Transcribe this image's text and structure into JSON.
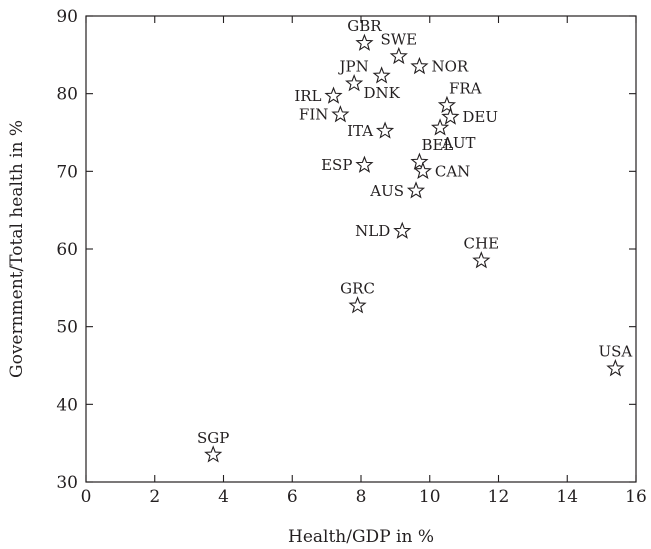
{
  "chart_data": {
    "type": "scatter",
    "title": "",
    "xlabel": "Health/GDP in %",
    "ylabel": "Government/Total health in %",
    "xlim": [
      0,
      16
    ],
    "ylim": [
      30,
      90
    ],
    "xticks": [
      0,
      2,
      4,
      6,
      8,
      10,
      12,
      14,
      16
    ],
    "yticks": [
      30,
      40,
      50,
      60,
      70,
      80,
      90
    ],
    "grid": false,
    "marker": "star",
    "points": [
      {
        "label": "GBR",
        "x": 8.1,
        "y": 86.5,
        "label_pos": "above"
      },
      {
        "label": "SWE",
        "x": 9.1,
        "y": 84.8,
        "label_pos": "above"
      },
      {
        "label": "NOR",
        "x": 9.7,
        "y": 83.5,
        "label_pos": "right"
      },
      {
        "label": "JPN",
        "x": 7.8,
        "y": 81.3,
        "label_pos": "above"
      },
      {
        "label": "DNK",
        "x": 8.6,
        "y": 82.3,
        "label_pos": "below"
      },
      {
        "label": "FRA",
        "x": 10.5,
        "y": 78.5,
        "label_pos": "above-right"
      },
      {
        "label": "IRL",
        "x": 7.2,
        "y": 79.7,
        "label_pos": "left"
      },
      {
        "label": "FIN",
        "x": 7.4,
        "y": 77.3,
        "label_pos": "left"
      },
      {
        "label": "DEU",
        "x": 10.6,
        "y": 77.0,
        "label_pos": "right"
      },
      {
        "label": "ITA",
        "x": 8.7,
        "y": 75.2,
        "label_pos": "left"
      },
      {
        "label": "AUT",
        "x": 10.3,
        "y": 75.6,
        "label_pos": "below-right"
      },
      {
        "label": "BEL",
        "x": 9.7,
        "y": 71.2,
        "label_pos": "above-right"
      },
      {
        "label": "ESP",
        "x": 8.1,
        "y": 70.8,
        "label_pos": "left"
      },
      {
        "label": "CAN",
        "x": 9.8,
        "y": 70.0,
        "label_pos": "right"
      },
      {
        "label": "AUS",
        "x": 9.6,
        "y": 67.5,
        "label_pos": "left"
      },
      {
        "label": "NLD",
        "x": 9.2,
        "y": 62.3,
        "label_pos": "left"
      },
      {
        "label": "CHE",
        "x": 11.5,
        "y": 58.5,
        "label_pos": "above"
      },
      {
        "label": "GRC",
        "x": 7.9,
        "y": 52.7,
        "label_pos": "above"
      },
      {
        "label": "USA",
        "x": 15.4,
        "y": 44.6,
        "label_pos": "above"
      },
      {
        "label": "SGP",
        "x": 3.7,
        "y": 33.5,
        "label_pos": "above"
      }
    ]
  }
}
